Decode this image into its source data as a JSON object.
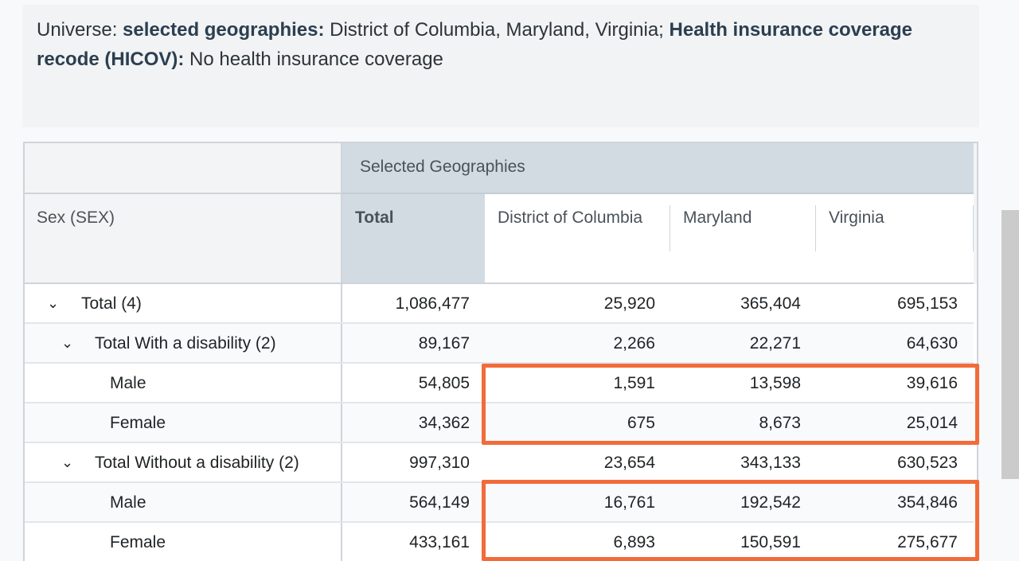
{
  "universe": {
    "prefix": "Universe:",
    "geo_label": "selected geographies:",
    "geo_value": "District of Columbia, Maryland, Virginia;",
    "hicov_label": "Health insurance coverage recode (HICOV):",
    "hicov_value": "No health insurance coverage"
  },
  "table": {
    "group_header": "Selected Geographies",
    "row_header": "Sex (SEX)",
    "columns": [
      "Total",
      "District of Columbia",
      "Maryland",
      "Virginia"
    ],
    "rows": [
      {
        "label": "Total (4)",
        "values": [
          "1,086,477",
          "25,920",
          "365,404",
          "695,153"
        ]
      },
      {
        "label": "Total With a disability (2)",
        "values": [
          "89,167",
          "2,266",
          "22,271",
          "64,630"
        ]
      },
      {
        "label": "Male",
        "values": [
          "54,805",
          "1,591",
          "13,598",
          "39,616"
        ]
      },
      {
        "label": "Female",
        "values": [
          "34,362",
          "675",
          "8,673",
          "25,014"
        ]
      },
      {
        "label": "Total Without a disability (2)",
        "values": [
          "997,310",
          "23,654",
          "343,133",
          "630,523"
        ]
      },
      {
        "label": "Male",
        "values": [
          "564,149",
          "16,761",
          "192,542",
          "354,846"
        ]
      },
      {
        "label": "Female",
        "values": [
          "433,161",
          "6,893",
          "150,591",
          "275,677"
        ]
      }
    ]
  },
  "icons": {
    "expand": "chevron-down-icon"
  },
  "colors": {
    "highlight": "#f26b3a",
    "header_bg": "#d3dbe2"
  }
}
